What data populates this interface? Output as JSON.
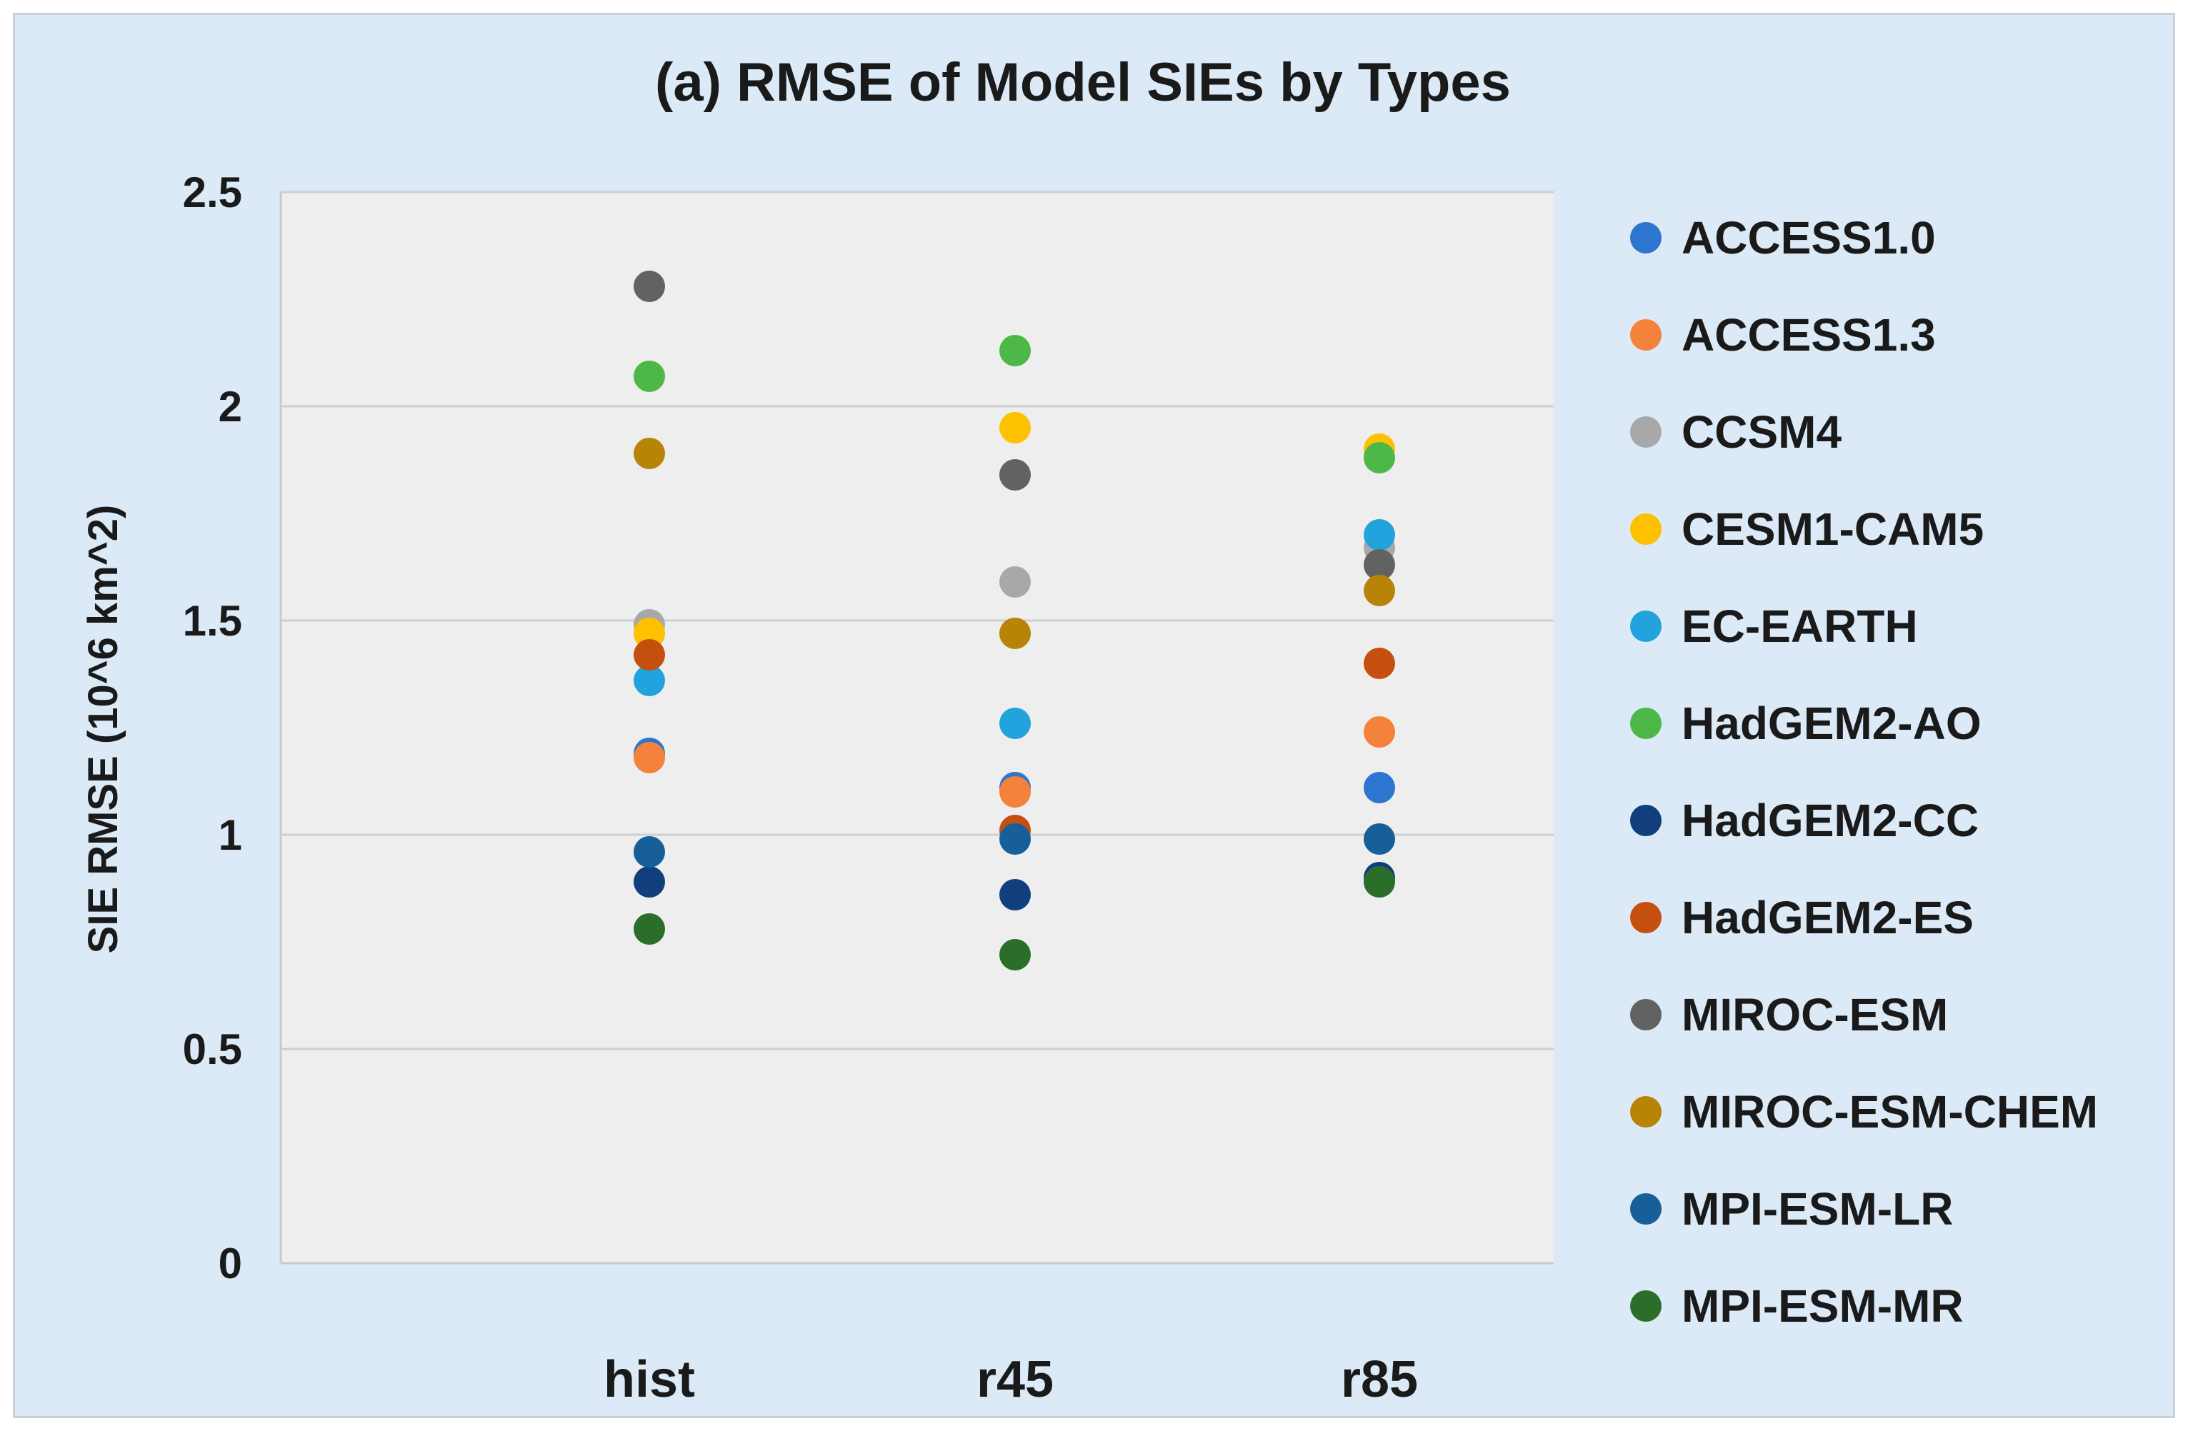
{
  "chart_data": {
    "type": "scatter",
    "title": "(a) RMSE of Model SIEs by Types",
    "xlabel": "",
    "ylabel": "SIE RMSE (10^6 km^2)",
    "categories": [
      "hist",
      "r45",
      "r85"
    ],
    "ylim": [
      0,
      2.5
    ],
    "yticks": [
      0,
      0.5,
      1,
      1.5,
      2,
      2.5
    ],
    "ytick_labels": [
      "0",
      "0.5",
      "1",
      "1.5",
      "2",
      "2.5"
    ],
    "grid": true,
    "legend_position": "right",
    "series": [
      {
        "name": "ACCESS1.0",
        "color": "#2e75d0",
        "values": [
          1.19,
          1.11,
          1.11
        ]
      },
      {
        "name": "ACCESS1.3",
        "color": "#f5823a",
        "values": [
          1.18,
          1.1,
          1.24
        ]
      },
      {
        "name": "CCSM4",
        "color": "#a8a8a8",
        "values": [
          1.49,
          1.59,
          1.67
        ]
      },
      {
        "name": "CESM1-CAM5",
        "color": "#fdc100",
        "values": [
          1.47,
          1.95,
          1.9
        ]
      },
      {
        "name": "EC-EARTH",
        "color": "#23a3dd",
        "values": [
          1.36,
          1.26,
          1.7
        ]
      },
      {
        "name": "HadGEM2-AO",
        "color": "#4db848",
        "values": [
          2.07,
          2.13,
          1.88
        ]
      },
      {
        "name": "HadGEM2-CC",
        "color": "#113f7d",
        "values": [
          0.89,
          0.86,
          0.9
        ]
      },
      {
        "name": "HadGEM2-ES",
        "color": "#c44f0f",
        "values": [
          1.42,
          1.01,
          1.4
        ]
      },
      {
        "name": "MIROC-ESM",
        "color": "#626262",
        "values": [
          2.28,
          1.84,
          1.63
        ]
      },
      {
        "name": "MIROC-ESM-CHEM",
        "color": "#b88408",
        "values": [
          1.89,
          1.47,
          1.57
        ]
      },
      {
        "name": "MPI-ESM-LR",
        "color": "#175f98",
        "values": [
          0.96,
          0.99,
          0.99
        ]
      },
      {
        "name": "MPI-ESM-MR",
        "color": "#2a6e2a",
        "values": [
          0.78,
          0.72,
          0.89
        ]
      }
    ]
  }
}
